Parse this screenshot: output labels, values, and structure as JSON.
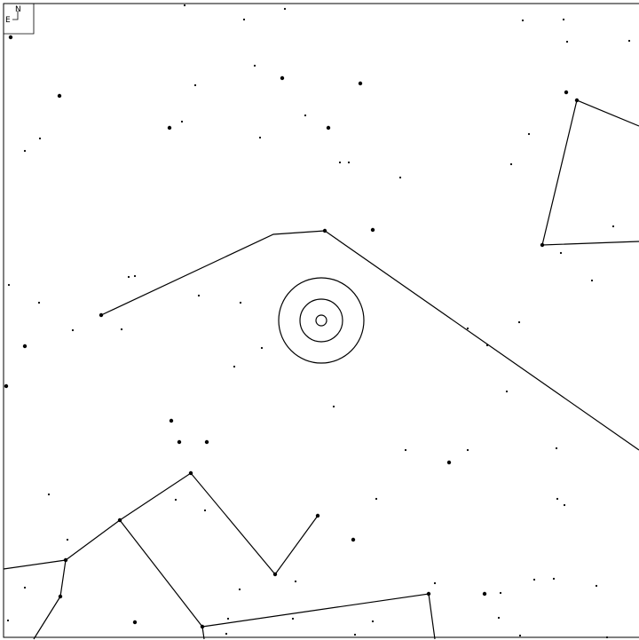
{
  "compass": {
    "north": "N",
    "east": "E"
  }
}
